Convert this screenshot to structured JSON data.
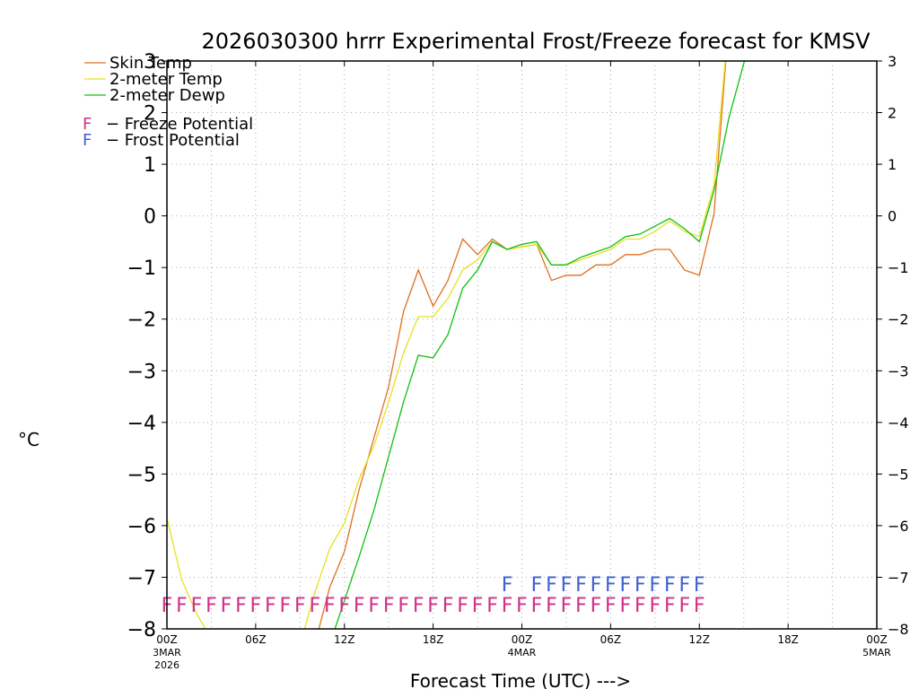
{
  "chart_data": {
    "type": "line",
    "title": "2026030300 hrrr Experimental Frost/Freeze forecast for KMSV",
    "xlabel": "Forecast Time (UTC) --->",
    "ylabel": "°C",
    "ylim": [
      -8,
      3
    ],
    "xlim": [
      0,
      48
    ],
    "grid": true,
    "y_ticks": [
      3,
      2,
      1,
      0,
      -1,
      -2,
      -3,
      -4,
      -5,
      -6,
      -7,
      -8
    ],
    "y_tick_labels": [
      "3",
      "2",
      "1",
      "0",
      "−1",
      "−2",
      "−3",
      "−4",
      "−5",
      "−6",
      "−7",
      "−8"
    ],
    "x_ticks": [
      {
        "x": 0,
        "label": "00Z",
        "date": "3MAR",
        "year": "2026"
      },
      {
        "x": 6,
        "label": "06Z",
        "date": "",
        "year": ""
      },
      {
        "x": 12,
        "label": "12Z",
        "date": "",
        "year": ""
      },
      {
        "x": 18,
        "label": "18Z",
        "date": "",
        "year": ""
      },
      {
        "x": 24,
        "label": "00Z",
        "date": "4MAR",
        "year": ""
      },
      {
        "x": 30,
        "label": "06Z",
        "date": "",
        "year": ""
      },
      {
        "x": 36,
        "label": "12Z",
        "date": "",
        "year": ""
      },
      {
        "x": 42,
        "label": "18Z",
        "date": "",
        "year": ""
      },
      {
        "x": 48,
        "label": "00Z",
        "date": "5MAR",
        "year": ""
      }
    ],
    "series": [
      {
        "name": "Skin Temp",
        "color": "#e07020",
        "points": [
          [
            10,
            -8.3
          ],
          [
            11,
            -7.2
          ],
          [
            12,
            -6.5
          ],
          [
            13,
            -5.3
          ],
          [
            14,
            -4.3
          ],
          [
            15,
            -3.3
          ],
          [
            16,
            -1.85
          ],
          [
            17,
            -1.05
          ],
          [
            18,
            -1.75
          ],
          [
            19,
            -1.25
          ],
          [
            20,
            -0.45
          ],
          [
            21,
            -0.75
          ],
          [
            22,
            -0.45
          ],
          [
            23,
            -0.65
          ],
          [
            24,
            -0.6
          ],
          [
            25,
            -0.55
          ],
          [
            26,
            -1.25
          ],
          [
            27,
            -1.15
          ],
          [
            28,
            -1.15
          ],
          [
            29,
            -0.95
          ],
          [
            30,
            -0.95
          ],
          [
            31,
            -0.75
          ],
          [
            32,
            -0.75
          ],
          [
            33,
            -0.65
          ],
          [
            34,
            -0.65
          ],
          [
            35,
            -1.05
          ],
          [
            36,
            -1.15
          ],
          [
            37,
            0.05
          ],
          [
            38,
            3.8
          ]
        ]
      },
      {
        "name": "2-meter Temp",
        "color": "#e8e020",
        "points": [
          [
            0,
            -5.85
          ],
          [
            1,
            -7.05
          ],
          [
            2,
            -7.7
          ],
          [
            3,
            -8.2
          ],
          [
            9,
            -8.3
          ],
          [
            10,
            -7.3
          ],
          [
            11,
            -6.45
          ],
          [
            12,
            -5.95
          ],
          [
            13,
            -5.1
          ],
          [
            14,
            -4.45
          ],
          [
            15,
            -3.6
          ],
          [
            16,
            -2.65
          ],
          [
            17,
            -1.95
          ],
          [
            18,
            -1.95
          ],
          [
            19,
            -1.6
          ],
          [
            20,
            -1.05
          ],
          [
            21,
            -0.85
          ],
          [
            22,
            -0.5
          ],
          [
            23,
            -0.65
          ],
          [
            24,
            -0.6
          ],
          [
            25,
            -0.55
          ],
          [
            26,
            -0.95
          ],
          [
            27,
            -0.95
          ],
          [
            28,
            -0.85
          ],
          [
            29,
            -0.75
          ],
          [
            30,
            -0.65
          ],
          [
            31,
            -0.45
          ],
          [
            32,
            -0.45
          ],
          [
            33,
            -0.3
          ],
          [
            34,
            -0.1
          ],
          [
            35,
            -0.3
          ],
          [
            36,
            -0.4
          ],
          [
            37,
            0.6
          ],
          [
            38,
            3.8
          ]
        ]
      },
      {
        "name": "2-meter Dewp",
        "color": "#10c010",
        "points": [
          [
            11,
            -8.3
          ],
          [
            12,
            -7.45
          ],
          [
            13,
            -6.6
          ],
          [
            14,
            -5.7
          ],
          [
            15,
            -4.65
          ],
          [
            16,
            -3.6
          ],
          [
            17,
            -2.7
          ],
          [
            18,
            -2.75
          ],
          [
            19,
            -2.3
          ],
          [
            20,
            -1.4
          ],
          [
            21,
            -1.05
          ],
          [
            22,
            -0.5
          ],
          [
            23,
            -0.65
          ],
          [
            24,
            -0.55
          ],
          [
            25,
            -0.5
          ],
          [
            26,
            -0.95
          ],
          [
            27,
            -0.95
          ],
          [
            28,
            -0.8
          ],
          [
            29,
            -0.7
          ],
          [
            30,
            -0.6
          ],
          [
            31,
            -0.4
          ],
          [
            32,
            -0.35
          ],
          [
            33,
            -0.2
          ],
          [
            34,
            -0.05
          ],
          [
            35,
            -0.25
          ],
          [
            36,
            -0.5
          ],
          [
            37,
            0.5
          ],
          [
            38,
            1.9
          ],
          [
            39,
            2.95
          ],
          [
            40,
            3.8
          ]
        ]
      }
    ],
    "freeze_potential": {
      "label": "F",
      "color": "#d0308a",
      "y": -7.5,
      "hours": [
        0,
        1,
        2,
        3,
        4,
        5,
        6,
        7,
        8,
        9,
        10,
        11,
        12,
        13,
        14,
        15,
        16,
        17,
        18,
        19,
        20,
        21,
        22,
        23,
        24,
        25,
        26,
        27,
        28,
        29,
        30,
        31,
        32,
        33,
        34,
        35,
        36
      ]
    },
    "frost_potential": {
      "label": "F",
      "color": "#4060d0",
      "y": -7.1,
      "hours": [
        23,
        25,
        26,
        27,
        28,
        29,
        30,
        31,
        32,
        33,
        34,
        35,
        36
      ]
    },
    "legend": [
      {
        "text": "Skin Temp",
        "color": "#e07020",
        "kind": "line"
      },
      {
        "text": "2-meter Temp",
        "color": "#e8e020",
        "kind": "line"
      },
      {
        "text": "2-meter Dewp",
        "color": "#10c010",
        "kind": "line"
      },
      {
        "text": "− Freeze Potential",
        "marker": "F",
        "color": "#d0308a",
        "kind": "marker"
      },
      {
        "text": "− Frost Potential",
        "marker": "F",
        "color": "#4060d0",
        "kind": "marker"
      }
    ],
    "legend_position": "top-left"
  }
}
